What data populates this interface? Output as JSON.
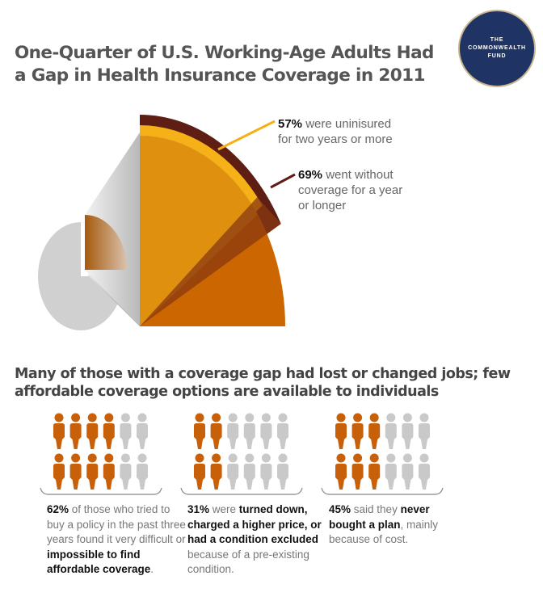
{
  "title": [
    "One-Quarter of U.S. Working-Age Adults Had",
    "a Gap in Health Insurance Coverage in 2011"
  ],
  "logo": {
    "lines": [
      "THE",
      "COMMONWEALTH",
      "FUND"
    ],
    "color": "#1f3464"
  },
  "chart_data": [
    {
      "type": "pie",
      "title": "One-Quarter of U.S. Working-Age Adults Had a Gap in Health Insurance Coverage in 2011",
      "overall_share": 0.25,
      "annotations": [
        {
          "value": "57%",
          "text": "were uninisured for two years or more",
          "color": "#f5b117"
        },
        {
          "value": "69%",
          "text": "went without coverage for a year or longer",
          "color": "#5e1e14"
        }
      ]
    },
    {
      "type": "pictograph",
      "title": "Many of those with a coverage gap had lost or changed jobs; few affordable coverage options are available to individuals",
      "icons_per_group": 12,
      "groups": [
        {
          "value": 62,
          "highlighted_per_row": 4
        },
        {
          "value": 31,
          "highlighted_per_row": 2
        },
        {
          "value": 45,
          "highlighted_per_row": 3
        }
      ],
      "colors": {
        "highlight": "#c8600a",
        "base": "#c9c9c9"
      }
    }
  ],
  "callouts": [
    {
      "pct": "57%",
      "line1": " were uninisured",
      "line2": "for two years or more"
    },
    {
      "pct": "69%",
      "line1": " went without",
      "line2": "coverage for a year",
      "line3": "or longer"
    }
  ],
  "subtitle": [
    "Many of those with a coverage gap had lost or changed jobs; few",
    "affordable coverage options are available to individuals"
  ],
  "stats": [
    {
      "parts": [
        [
          "b",
          "62%"
        ],
        [
          "n",
          " of those who tried to buy a policy in the past three years found it very difficult or "
        ],
        [
          "b",
          "impossible to find affordable coverage"
        ],
        [
          "n",
          "."
        ]
      ]
    },
    {
      "parts": [
        [
          "b",
          "31%"
        ],
        [
          "n",
          " were "
        ],
        [
          "b",
          "turned down, charged a higher price, or had a condition excluded"
        ],
        [
          "n",
          " because of a pre-existing condition."
        ]
      ]
    },
    {
      "parts": [
        [
          "b",
          "45%"
        ],
        [
          "n",
          " said they "
        ],
        [
          "b",
          "never bought a plan"
        ],
        [
          "n",
          ", mainly because of cost."
        ]
      ]
    }
  ]
}
